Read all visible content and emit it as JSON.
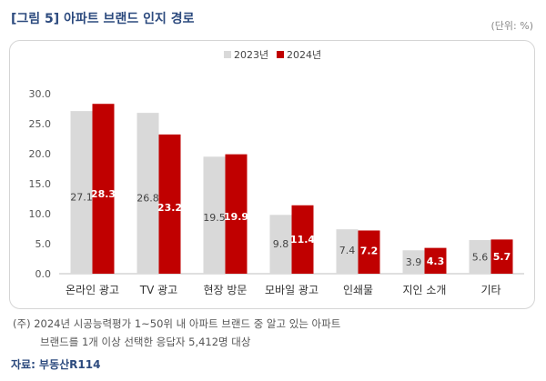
{
  "title": "[그림 5] 아파트 브랜드 인지 경로",
  "unit": "(단위: %)",
  "note_line1": "(주) 2024년 시공능력평가 1~50위 내 아파트 브랜드 중 알고 있는 아파트",
  "note_line2": "브랜드를 1개 이상 선택한 응답자 5,412명 대상",
  "source": "자료: 부동산R114",
  "colors": {
    "series_2023": "#d9d9d9",
    "series_2024": "#c00000"
  },
  "chart_data": {
    "type": "bar",
    "categories": [
      "온라인 광고",
      "TV 광고",
      "현장 방문",
      "모바일 광고",
      "인쇄물",
      "지인 소개",
      "기타"
    ],
    "series": [
      {
        "name": "2023년",
        "values": [
          27.1,
          26.8,
          19.5,
          9.8,
          7.4,
          3.9,
          5.6
        ]
      },
      {
        "name": "2024년",
        "values": [
          28.3,
          23.2,
          19.9,
          11.4,
          7.2,
          4.3,
          5.7
        ]
      }
    ],
    "ylim": [
      0,
      30
    ],
    "yticks": [
      "0.0",
      "5.0",
      "10.0",
      "15.0",
      "20.0",
      "25.0",
      "30.0"
    ],
    "legend_position": "top-center",
    "grid": false
  }
}
